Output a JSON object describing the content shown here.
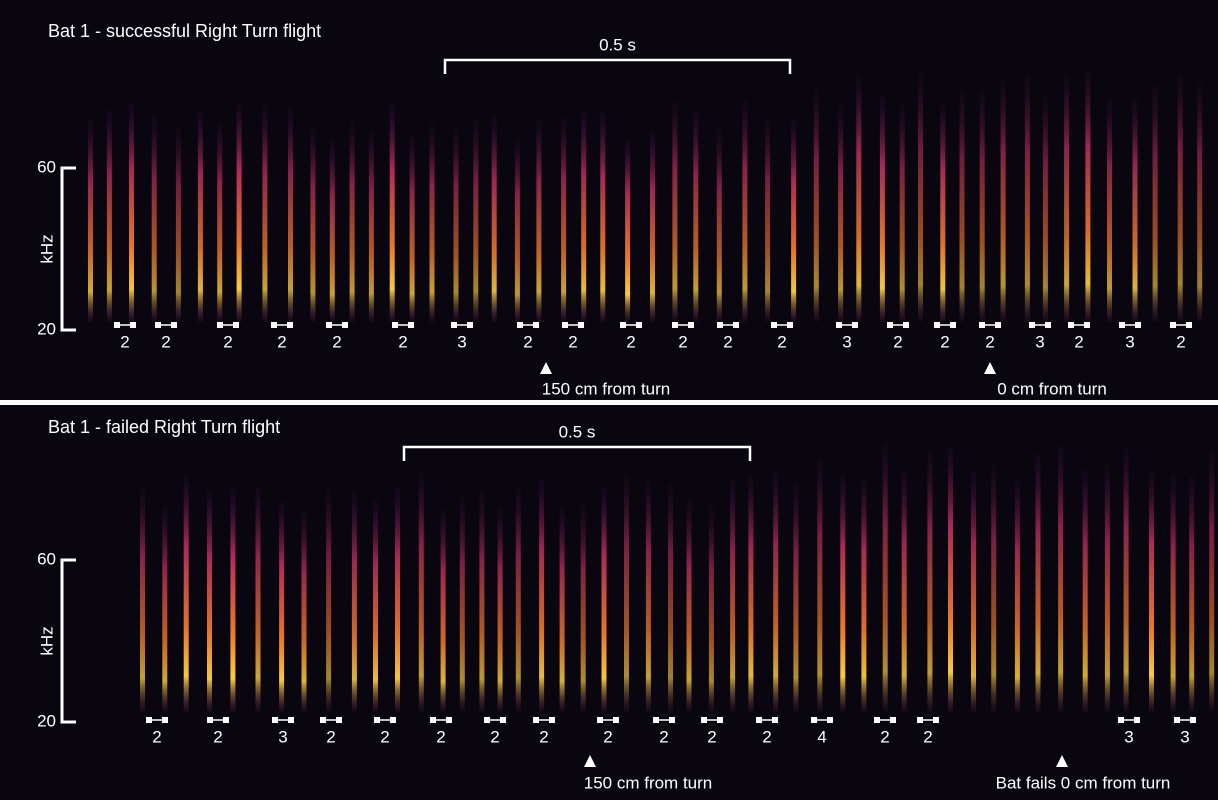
{
  "panels": [
    {
      "title": "Bat 1 - successful Right Turn flight",
      "scale_bar": "0.5 s",
      "y_axis": {
        "top": "60",
        "bottom": "20",
        "label": "kHz"
      },
      "group_labels": [
        2,
        2,
        2,
        2,
        2,
        2,
        3,
        2,
        2,
        2,
        2,
        2,
        2,
        3,
        2,
        2,
        2,
        3,
        2,
        3,
        2
      ],
      "markers": [
        "150 cm from turn",
        "0 cm from turn"
      ]
    },
    {
      "title": "Bat 1 - failed Right Turn flight",
      "scale_bar": "0.5 s",
      "y_axis": {
        "top": "60",
        "bottom": "20",
        "label": "kHz"
      },
      "group_labels": [
        2,
        2,
        3,
        2,
        2,
        2,
        2,
        2,
        2,
        2,
        2,
        2,
        4,
        2,
        2,
        3,
        3
      ],
      "markers": [
        "150 cm from turn",
        "Bat fails 0 cm from turn"
      ]
    }
  ]
}
